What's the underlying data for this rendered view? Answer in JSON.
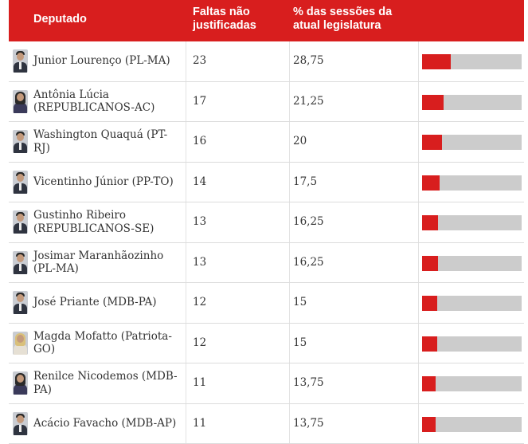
{
  "chart_data": {
    "type": "table",
    "columns": [
      "Deputado",
      "Faltas não justificadas",
      "% das sessões da atual legislatura"
    ],
    "rows": [
      {
        "name": "Junior Lourenço (PL-MA)",
        "faltas": "23",
        "pct": "28,75",
        "value": 28.75,
        "avatar": "male"
      },
      {
        "name": "Antônia Lúcia (REPUBLICANOS-AC)",
        "faltas": "17",
        "pct": "21,25",
        "value": 21.25,
        "avatar": "female"
      },
      {
        "name": "Washington Quaquá (PT-RJ)",
        "faltas": "16",
        "pct": "20",
        "value": 20,
        "avatar": "male"
      },
      {
        "name": "Vicentinho Júnior (PP-TO)",
        "faltas": "14",
        "pct": "17,5",
        "value": 17.5,
        "avatar": "male"
      },
      {
        "name": "Gustinho Ribeiro (REPUBLICANOS-SE)",
        "faltas": "13",
        "pct": "16,25",
        "value": 16.25,
        "avatar": "male"
      },
      {
        "name": "Josimar Maranhãozinho (PL-MA)",
        "faltas": "13",
        "pct": "16,25",
        "value": 16.25,
        "avatar": "male"
      },
      {
        "name": "José Priante (MDB-PA)",
        "faltas": "12",
        "pct": "15",
        "value": 15,
        "avatar": "male"
      },
      {
        "name": "Magda Mofatto (Patriota-GO)",
        "faltas": "12",
        "pct": "15",
        "value": 15,
        "avatar": "blonde"
      },
      {
        "name": "Renilce Nicodemos (MDB-PA)",
        "faltas": "11",
        "pct": "13,75",
        "value": 13.75,
        "avatar": "female"
      },
      {
        "name": "Acácio Favacho (MDB-AP)",
        "faltas": "11",
        "pct": "13,75",
        "value": 13.75,
        "avatar": "male"
      }
    ],
    "bar_max": 100,
    "colors": {
      "accent": "#d81e1e",
      "bar_bg": "#cccccc",
      "header_text": "#ffffff"
    }
  },
  "header": {
    "deputado": "Deputado",
    "faltas": "Faltas não\njustificadas",
    "pct": "% das sessões da\natual legislatura"
  },
  "name_lines": [
    [
      "Junior Lourenço (PL-MA)"
    ],
    [
      "Antônia Lúcia",
      "(REPUBLICANOS-AC)"
    ],
    [
      "Washington Quaquá (PT-",
      "RJ)"
    ],
    [
      "Vicentinho Júnior (PP-TO)"
    ],
    [
      "Gustinho Ribeiro",
      "(REPUBLICANOS-SE)"
    ],
    [
      "Josimar Maranhãozinho",
      "(PL-MA)"
    ],
    [
      "José Priante (MDB-PA)"
    ],
    [
      "Magda Mofatto (Patriota-",
      "GO)"
    ],
    [
      "Renilce Nicodemos (MDB-",
      "PA)"
    ],
    [
      "Acácio Favacho (MDB-AP)"
    ]
  ]
}
